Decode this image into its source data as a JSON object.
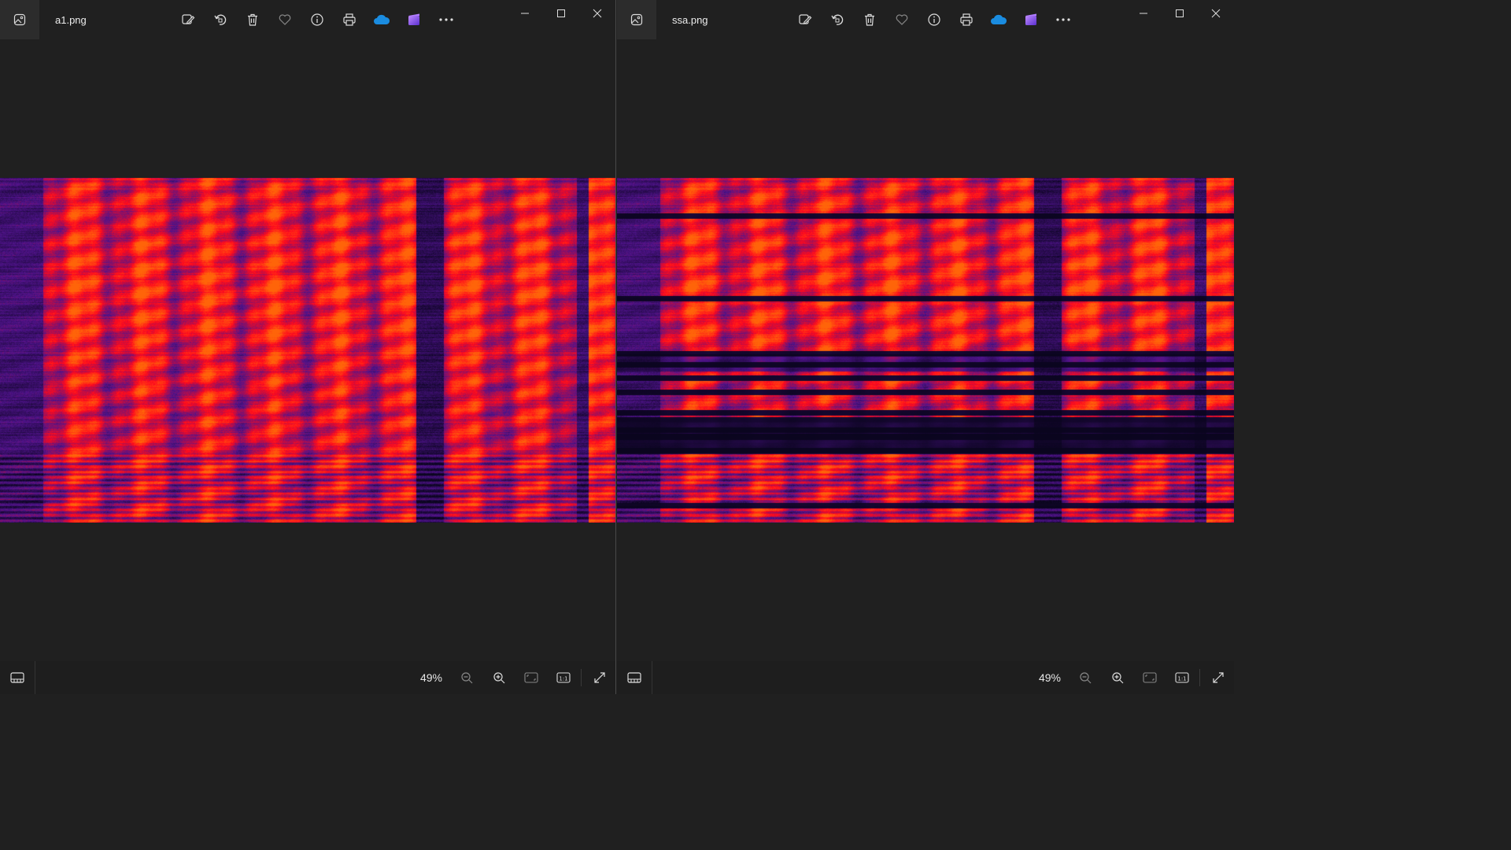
{
  "windows": [
    {
      "filename": "a1.png",
      "zoom": "49%",
      "toolbar": [
        "edit-image-icon",
        "rotate-icon",
        "delete-icon",
        "favorite-icon",
        "info-icon",
        "print-icon",
        "onedrive-icon",
        "clipchamp-icon",
        "more-icon"
      ],
      "spectrogram": {
        "variant": "original",
        "notches": []
      }
    },
    {
      "filename": "ssa.png",
      "zoom": "49%",
      "toolbar": [
        "edit-image-icon",
        "rotate-icon",
        "delete-icon",
        "favorite-icon",
        "info-icon",
        "print-icon",
        "onedrive-icon",
        "clipchamp-icon",
        "more-icon"
      ],
      "spectrogram": {
        "variant": "filtered",
        "notches": [
          0.11,
          0.35,
          0.51,
          0.54,
          0.58,
          0.62,
          0.68,
          0.7,
          0.73,
          0.75,
          0.79,
          0.95
        ]
      }
    }
  ],
  "colors": {
    "background": "#202020",
    "spectro_dark": "#0a0520",
    "spectro_mid": "#5a1a9a",
    "spectro_hot": "#ff1010"
  }
}
